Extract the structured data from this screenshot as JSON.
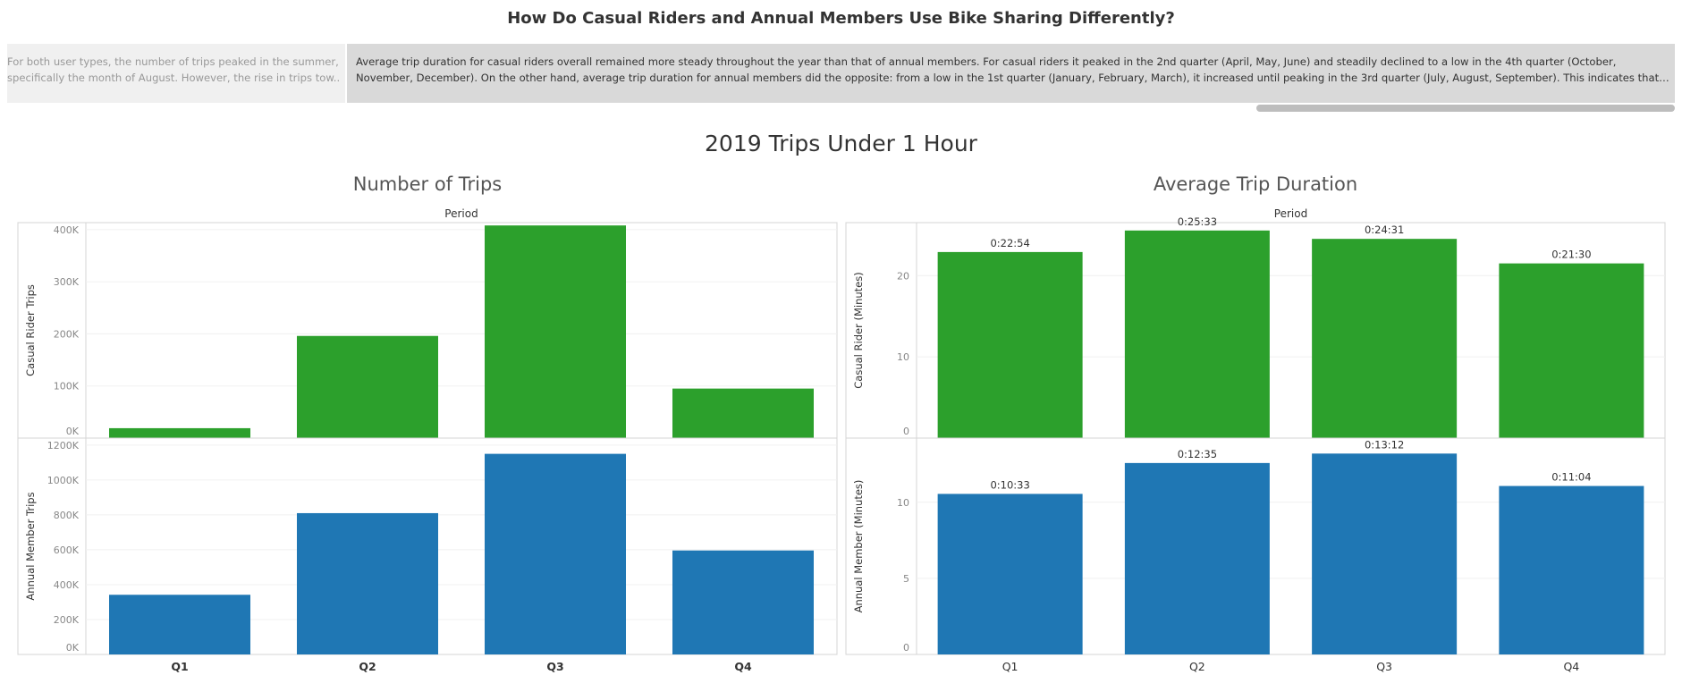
{
  "dashboard": {
    "title": "How Do Casual Riders and Annual Members Use Bike Sharing Differently?",
    "main_title": "2019 Trips Under 1 Hour"
  },
  "text_panels": {
    "left": "For both user types, the number of trips peaked in the summer, specifically the month of August. However, the rise in trips tow..",
    "right": "Average trip duration for casual riders overall remained more steady throughout the year than that of annual members. For casual riders it peaked in the 2nd quarter (April, May, June) and steadily declined to a low in the 4th quarter (October, November, December). On the other hand, average trip duration for annual members did the opposite: from a low in the 1st quarter (January, February, March), it increased until peaking in the 3rd quarter (July, August, September). This indicates that weather, while bein.."
  },
  "colors": {
    "casual": "#2ca02c",
    "member": "#1f77b4",
    "panel_left_bg": "#f0f0f0",
    "panel_right_bg": "#d9d9d9"
  },
  "chart_data": [
    {
      "type": "bar",
      "title": "Number of Trips",
      "column_header": "Period",
      "categories": [
        "Q1",
        "Q2",
        "Q3",
        "Q4"
      ],
      "panels": [
        {
          "ylabel": "Casual Rider Trips",
          "ylim": [
            0,
            410000
          ],
          "yticks": [
            0,
            100000,
            200000,
            300000,
            400000
          ],
          "ytick_labels": [
            "0K",
            "100K",
            "200K",
            "300K",
            "400K"
          ],
          "color": "#2ca02c",
          "values": [
            19000,
            196000,
            408000,
            95000
          ]
        },
        {
          "ylabel": "Annual Member Trips",
          "ylim": [
            0,
            1230000
          ],
          "yticks": [
            0,
            200000,
            400000,
            600000,
            800000,
            1000000,
            1200000
          ],
          "ytick_labels": [
            "0K",
            "200K",
            "400K",
            "600K",
            "800K",
            "1000K",
            "1200K"
          ],
          "color": "#1f77b4",
          "values": [
            342000,
            810000,
            1150000,
            596000
          ]
        }
      ]
    },
    {
      "type": "bar",
      "title": "Average Trip Duration",
      "column_header": "Period",
      "categories": [
        "Q1",
        "Q2",
        "Q3",
        "Q4"
      ],
      "panels": [
        {
          "ylabel": "Casual Rider (Minutes)",
          "ylim": [
            0,
            26.3
          ],
          "yticks": [
            0,
            10,
            20
          ],
          "ytick_labels": [
            "0",
            "10",
            "20"
          ],
          "color": "#2ca02c",
          "values": [
            22.9,
            25.55,
            24.52,
            21.5
          ],
          "data_labels": [
            "0:22:54",
            "0:25:33",
            "0:24:31",
            "0:21:30"
          ]
        },
        {
          "ylabel": "Annual Member (Minutes)",
          "ylim": [
            0,
            14.1
          ],
          "yticks": [
            0,
            5,
            10
          ],
          "ytick_labels": [
            "0",
            "5",
            "10"
          ],
          "color": "#1f77b4",
          "values": [
            10.55,
            12.58,
            13.2,
            11.07
          ],
          "data_labels": [
            "0:10:33",
            "0:12:35",
            "0:13:12",
            "0:11:04"
          ]
        }
      ]
    }
  ]
}
